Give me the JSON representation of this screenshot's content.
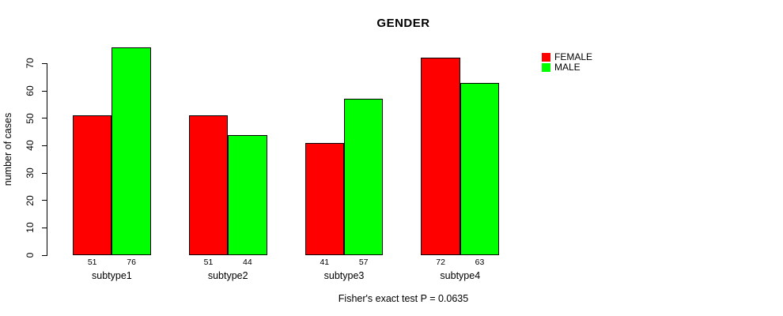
{
  "chart_data": {
    "type": "bar",
    "title": "GENDER",
    "categories": [
      "subtype1",
      "subtype2",
      "subtype3",
      "subtype4"
    ],
    "series": [
      {
        "name": "FEMALE",
        "color": "#ff0000",
        "values": [
          51,
          51,
          41,
          72
        ]
      },
      {
        "name": "MALE",
        "color": "#00ff00",
        "values": [
          76,
          44,
          57,
          63
        ]
      }
    ],
    "xlabel": "",
    "ylabel": "number of cases",
    "ylim": [
      0,
      70
    ],
    "yticks": [
      0,
      10,
      20,
      30,
      40,
      50,
      60,
      70
    ],
    "bar_value_labels": true,
    "legend_position": "top-right",
    "grid": false,
    "annotation": "Fisher's exact test P = 0.0635"
  }
}
